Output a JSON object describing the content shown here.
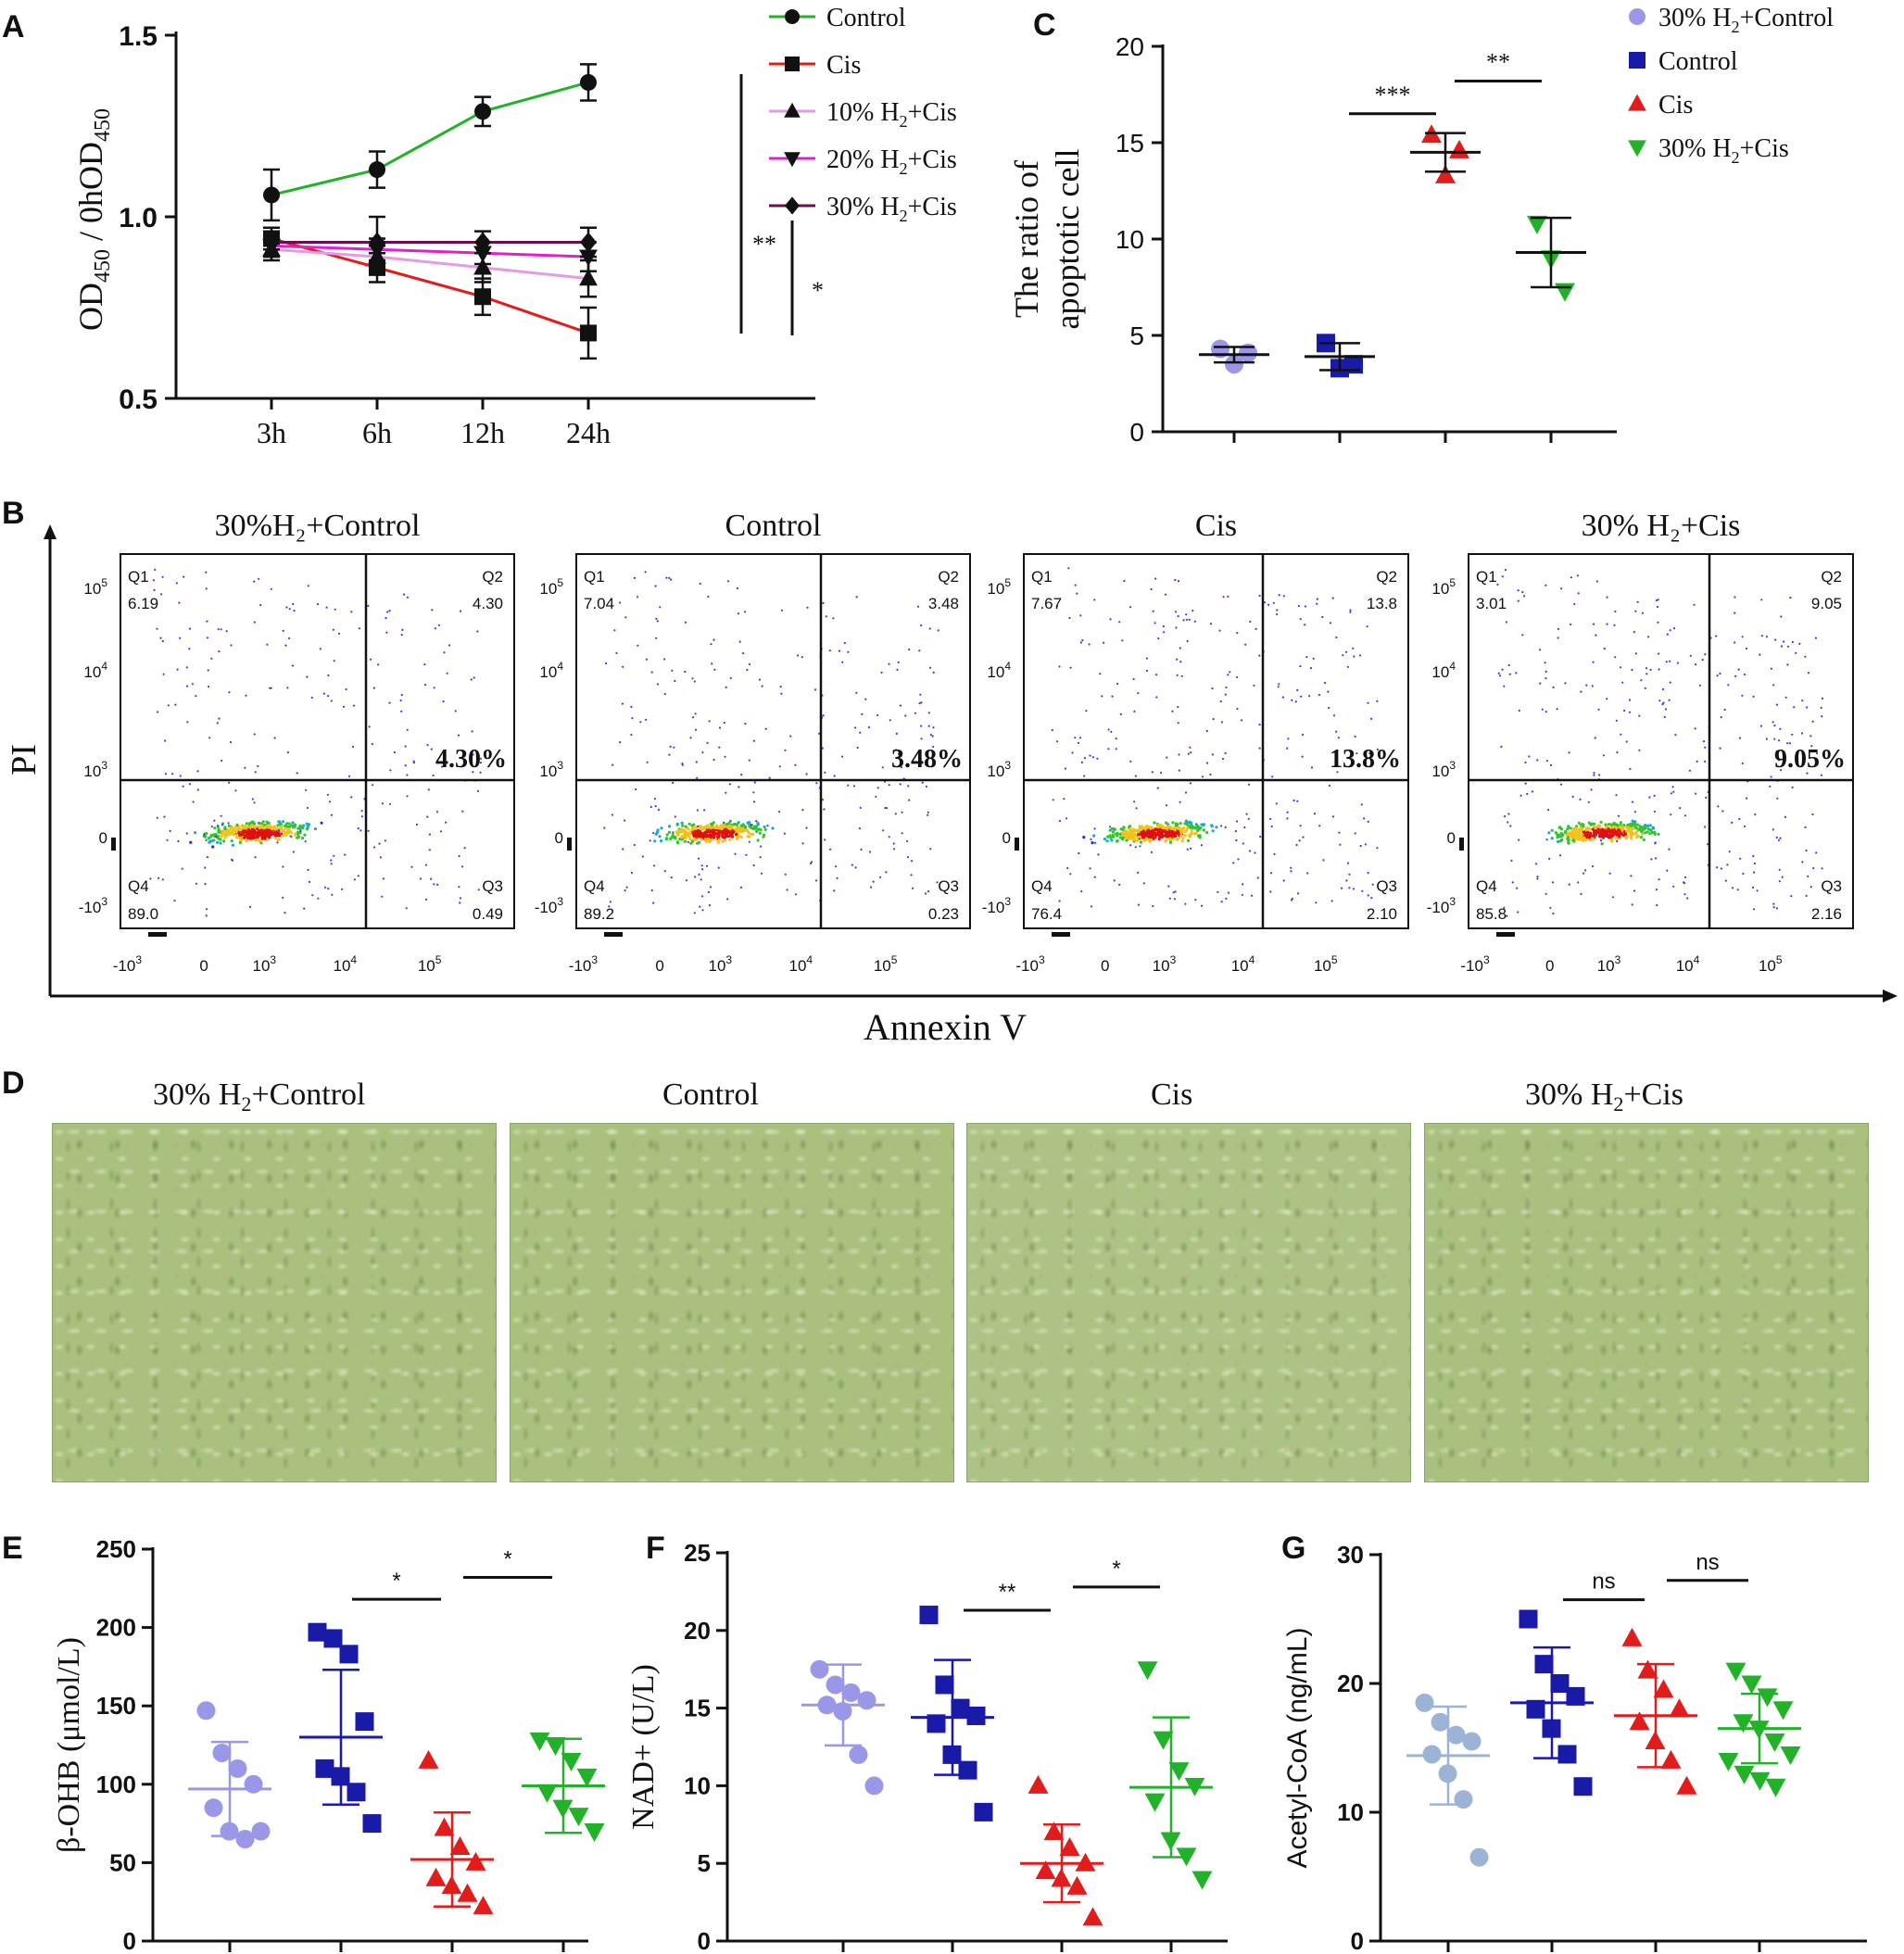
{
  "panels": {
    "A": "A",
    "B": "B",
    "C": "C",
    "D": "D",
    "E": "E",
    "F": "F",
    "G": "G"
  },
  "panel_a": {
    "ylabel_main": "OD",
    "ylabel_sub1": "450",
    "ylabel_mid": " / 0hOD",
    "ylabel_sub2": "450",
    "sig_outer": "**",
    "sig_inner": "*"
  },
  "panel_b": {
    "titles": [
      "30%H₂+Control",
      "Control",
      "Cis",
      "30% H₂+Cis"
    ],
    "ylabel": "PI",
    "xlabel": "Annexin V",
    "quadrant_labels": [
      "Q1",
      "Q2",
      "Q3",
      "Q4"
    ],
    "y_ticks": [
      "10",
      "10",
      "10",
      "0",
      "-10"
    ],
    "y_tick_exps": [
      "5",
      "4",
      "3",
      "",
      "3"
    ],
    "x_ticks": [
      "-10",
      "0",
      "10",
      "10",
      "10"
    ],
    "x_tick_exps": [
      "3",
      "",
      "3",
      "4",
      "5"
    ],
    "plots": [
      {
        "q1": "6.19",
        "q2": "4.30",
        "q3": "0.49",
        "q4": "89.0",
        "pct": "4.30%"
      },
      {
        "q1": "7.04",
        "q2": "3.48",
        "q3": "0.23",
        "q4": "89.2",
        "pct": "3.48%"
      },
      {
        "q1": "7.67",
        "q2": "13.8",
        "q3": "2.10",
        "q4": "76.4",
        "pct": "13.8%"
      },
      {
        "q1": "3.01",
        "q2": "9.05",
        "q3": "2.16",
        "q4": "85.8",
        "pct": "9.05%"
      }
    ]
  },
  "panel_d": {
    "titles": [
      "30% H₂+Control",
      "Control",
      "Cis",
      "30% H₂+Cis"
    ]
  },
  "chart_data": [
    {
      "id": "A",
      "type": "line",
      "title": "",
      "xlabel": "",
      "ylabel": "OD450 / 0hOD450",
      "categories": [
        "3h",
        "6h",
        "12h",
        "24h"
      ],
      "ylim": [
        0.5,
        1.5
      ],
      "yticks": [
        "0.5",
        "1.0",
        "1.5"
      ],
      "legend_position": "top-right",
      "series": [
        {
          "name": "Control",
          "values": [
            1.06,
            1.13,
            1.29,
            1.37
          ],
          "errors": [
            0.07,
            0.05,
            0.04,
            0.05
          ],
          "color": "#22b22a",
          "marker": "circle"
        },
        {
          "name": "Cis",
          "values": [
            0.94,
            0.86,
            0.78,
            0.68
          ],
          "errors": [
            0.03,
            0.04,
            0.05,
            0.07
          ],
          "color": "#e21b1b",
          "marker": "square"
        },
        {
          "name": "10% H₂+Cis",
          "values": [
            0.91,
            0.89,
            0.86,
            0.83
          ],
          "errors": [
            0.03,
            0.03,
            0.04,
            0.05
          ],
          "color": "#e59ae6",
          "marker": "triangle-up"
        },
        {
          "name": "20% H₂+Cis",
          "values": [
            0.92,
            0.91,
            0.9,
            0.89
          ],
          "errors": [
            0.03,
            0.03,
            0.03,
            0.04
          ],
          "color": "#e020c8",
          "marker": "triangle-down"
        },
        {
          "name": "30% H₂+Cis",
          "values": [
            0.93,
            0.93,
            0.93,
            0.93
          ],
          "errors": [
            0.02,
            0.07,
            0.03,
            0.04
          ],
          "color": "#6b0f4e",
          "marker": "diamond"
        }
      ]
    },
    {
      "id": "C",
      "type": "scatter",
      "title": "",
      "xlabel": "",
      "ylabel": "The ratio of apoptotic cell",
      "ylim": [
        0,
        20
      ],
      "yticks": [
        "0",
        "5",
        "10",
        "15",
        "20"
      ],
      "legend_position": "top-right",
      "groups": [
        {
          "name": "30% H₂+Control",
          "points": [
            4.3,
            3.5,
            4.1
          ],
          "mean": 4.0,
          "sd": 0.4,
          "color": "#9b97e8",
          "marker": "circle"
        },
        {
          "name": "Control",
          "points": [
            4.6,
            3.3,
            3.5
          ],
          "mean": 3.9,
          "sd": 0.7,
          "color": "#1a1aa8",
          "marker": "square"
        },
        {
          "name": "Cis",
          "points": [
            15.4,
            13.3,
            14.6
          ],
          "mean": 14.5,
          "sd": 1.0,
          "color": "#e21b1b",
          "marker": "triangle-up"
        },
        {
          "name": "30% H₂+Cis",
          "points": [
            10.8,
            9.0,
            7.3
          ],
          "mean": 9.3,
          "sd": 1.8,
          "color": "#22b22a",
          "marker": "triangle-down"
        }
      ],
      "significance": [
        {
          "from": 1,
          "to": 2,
          "label": "***",
          "level": 16.5
        },
        {
          "from": 2,
          "to": 3,
          "label": "**",
          "level": 18.2
        }
      ]
    },
    {
      "id": "E",
      "type": "scatter",
      "title": "",
      "xlabel": "",
      "ylabel": "β-OHB (μmol/L)",
      "ylim": [
        0,
        250
      ],
      "yticks": [
        "0",
        "50",
        "100",
        "150",
        "200",
        "250"
      ],
      "groups": [
        {
          "points": [
            147,
            120,
            110,
            100,
            85,
            70,
            65,
            70
          ],
          "mean": 97,
          "sd": 30,
          "color": "#9b97e8",
          "marker": "circle"
        },
        {
          "points": [
            197,
            193,
            183,
            140,
            110,
            105,
            95,
            75
          ],
          "mean": 130,
          "sd": 43,
          "color": "#1a1aa8",
          "marker": "square"
        },
        {
          "points": [
            115,
            72,
            60,
            50,
            40,
            35,
            30,
            22
          ],
          "mean": 52,
          "sd": 30,
          "color": "#e21b1b",
          "marker": "triangle-up"
        },
        {
          "points": [
            128,
            125,
            115,
            105,
            95,
            85,
            80,
            70
          ],
          "mean": 99,
          "sd": 30,
          "color": "#22b22a",
          "marker": "triangle-down"
        }
      ],
      "significance": [
        {
          "from": 1,
          "to": 2,
          "label": "*",
          "level": 218
        },
        {
          "from": 2,
          "to": 3,
          "label": "*",
          "level": 232
        }
      ]
    },
    {
      "id": "F",
      "type": "scatter",
      "title": "",
      "xlabel": "",
      "ylabel": "NAD+ (U/L)",
      "ylim": [
        0,
        25
      ],
      "yticks": [
        "0",
        "5",
        "10",
        "15",
        "20",
        "25"
      ],
      "groups": [
        {
          "points": [
            17.5,
            16.5,
            16.0,
            15.5,
            15.2,
            14.8,
            12.0,
            10.0
          ],
          "mean": 15.2,
          "sd": 2.6,
          "color": "#9b97e8",
          "marker": "circle"
        },
        {
          "points": [
            21.0,
            16.5,
            15.0,
            14.5,
            14.0,
            12.0,
            11.0,
            8.3
          ],
          "mean": 14.4,
          "sd": 3.7,
          "color": "#1a1aa8",
          "marker": "square"
        },
        {
          "points": [
            10.0,
            7.0,
            6.0,
            5.0,
            4.5,
            4.0,
            3.5,
            1.5
          ],
          "mean": 5.0,
          "sd": 2.5,
          "color": "#e21b1b",
          "marker": "triangle-up"
        },
        {
          "points": [
            17.5,
            13.0,
            11.0,
            10.0,
            9.0,
            6.5,
            5.5,
            4.0
          ],
          "mean": 9.9,
          "sd": 4.5,
          "color": "#22b22a",
          "marker": "triangle-down"
        }
      ],
      "significance": [
        {
          "from": 1,
          "to": 2,
          "label": "**",
          "level": 21.3
        },
        {
          "from": 2,
          "to": 3,
          "label": "*",
          "level": 22.8
        }
      ]
    },
    {
      "id": "G",
      "type": "scatter",
      "title": "",
      "xlabel": "",
      "ylabel": "Acetyl-CoA (ng/mL)",
      "ylim": [
        0,
        30
      ],
      "yticks": [
        "0",
        "10",
        "20",
        "30"
      ],
      "groups": [
        {
          "points": [
            18.5,
            17.0,
            16.0,
            15.5,
            14.5,
            13.0,
            11.0,
            6.5
          ],
          "mean": 14.4,
          "sd": 3.8,
          "color": "#9bb4d6",
          "marker": "circle"
        },
        {
          "points": [
            25.0,
            21.5,
            20.0,
            19.0,
            18.0,
            16.5,
            14.5,
            12.0
          ],
          "mean": 18.5,
          "sd": 4.3,
          "color": "#1a1aa8",
          "marker": "square"
        },
        {
          "points": [
            23.5,
            21.0,
            19.5,
            18.0,
            17.0,
            15.5,
            14.0,
            12.0
          ],
          "mean": 17.5,
          "sd": 4.0,
          "color": "#e21b1b",
          "marker": "triangle-up"
        },
        {
          "points": [
            21.0,
            20.0,
            19.0,
            18.0,
            17.0,
            16.5,
            15.5,
            14.5,
            14.0,
            13.0,
            12.5,
            12.0
          ],
          "mean": 16.5,
          "sd": 2.7,
          "color": "#22b22a",
          "marker": "triangle-down"
        }
      ],
      "significance": [
        {
          "from": 1,
          "to": 2,
          "label": "ns",
          "level": 26.5
        },
        {
          "from": 2,
          "to": 3,
          "label": "ns",
          "level": 28.0
        }
      ]
    }
  ]
}
